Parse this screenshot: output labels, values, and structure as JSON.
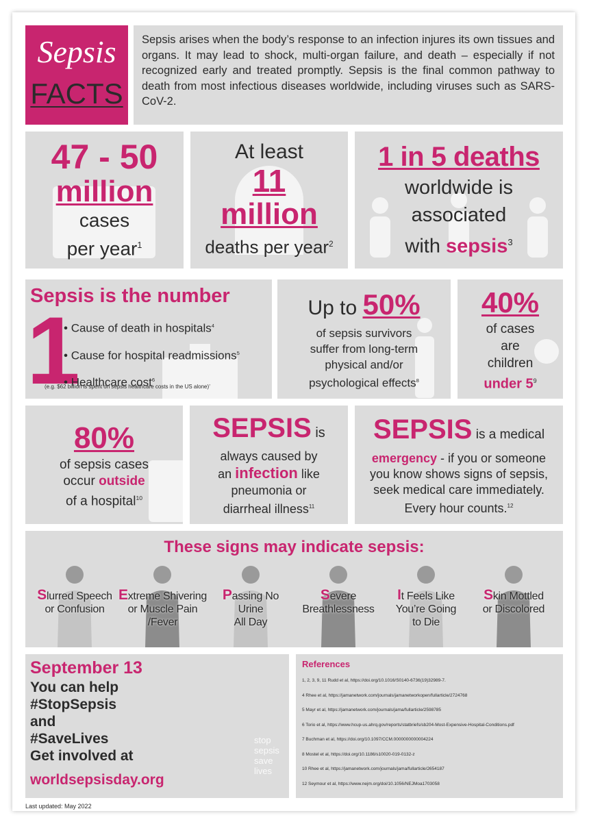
{
  "header": {
    "title": "Sepsis",
    "subtitle": "FACTS",
    "text": "Sepsis arises when the body’s response to an infection injures its own tissues and organs. It may lead to shock, multi-organ failure, and death – especially if not recognized early and treated promptly. Sepsis is the final common pathway to death from most infectious diseases worldwide, including viruses such as SARS-CoV-2."
  },
  "cases": {
    "figure": "47 - 50",
    "unit": "million",
    "line_1": "cases",
    "line_2": "per year",
    "ref": "1"
  },
  "deaths": {
    "intro": "At least",
    "figure": "11",
    "unit": "million",
    "line_1": "deaths per year",
    "ref": "2"
  },
  "share": {
    "figure": "1 in 5 deaths",
    "line_1": "worldwide is",
    "line_2": "associated",
    "line_3": "with",
    "emphasis": "sepsis",
    "ref": "3"
  },
  "number_one": {
    "title": "Sepsis is the number",
    "numeral": "1",
    "items": [
      {
        "text": "Cause of death in hospitals",
        "ref": "4"
      },
      {
        "text": "Cause for hospital readmissions",
        "ref": "5"
      },
      {
        "text": "Healthcare cost",
        "ref": "6"
      }
    ],
    "note": "(e.g. $62 billion is spent on sepsis healthcare costs in the US alone)",
    "note_ref": "7"
  },
  "survivors": {
    "intro": "Up to",
    "figure": "50%",
    "lines": [
      "of sepsis survivors",
      "suffer from long-term",
      "physical and/or",
      "psychological effects"
    ],
    "ref": "8"
  },
  "children": {
    "figure": "40%",
    "lines": [
      "of cases",
      "are",
      "children"
    ],
    "emphasis": "under 5",
    "ref": "9"
  },
  "outside": {
    "figure": "80%",
    "line_1": "of sepsis cases",
    "line_2": "occur",
    "emphasis": "outside",
    "line_3": "of a hospital",
    "ref": "10"
  },
  "infection": {
    "title": "SEPSIS",
    "after_title": "is",
    "line_1": "always caused by",
    "line_2": "an",
    "emphasis": "infection",
    "after_emphasis": "like",
    "line_3": "pneumonia or",
    "line_4": "diarrheal illness",
    "ref": "11"
  },
  "emergency": {
    "title": "SEPSIS",
    "after_title": "is a medical",
    "emphasis": "emergency",
    "after_emphasis": "- if you or someone",
    "line_1": "you know shows signs of sepsis,",
    "line_2": "seek medical care immediately.",
    "line_3": "Every hour counts.",
    "ref": "12"
  },
  "signs": {
    "title": "These signs may indicate sepsis:",
    "items": [
      {
        "initial": "S",
        "lines": [
          "lurred Speech",
          "or Confusion"
        ]
      },
      {
        "initial": "E",
        "lines": [
          "xtreme Shivering",
          "or Muscle Pain",
          "/Fever"
        ]
      },
      {
        "initial": "P",
        "lines": [
          "assing No",
          "Urine",
          "All Day"
        ]
      },
      {
        "initial": "S",
        "lines": [
          "evere",
          "Breathlessness"
        ]
      },
      {
        "initial": "I",
        "lines": [
          "t Feels Like",
          "You’re Going",
          "to Die"
        ]
      },
      {
        "initial": "S",
        "lines": [
          "kin Mottled",
          "or Discolored"
        ]
      }
    ]
  },
  "campaign": {
    "date": "September 13",
    "lines": [
      "You can help",
      "#StopSepsis",
      "and",
      "#SaveLives",
      "Get involved at"
    ],
    "link": "worldsepsisday.org",
    "logo": [
      "stop",
      "sepsis",
      "save",
      "lives"
    ]
  },
  "references": {
    "title": "References",
    "items": [
      "1, 2, 3, 9, 11 Rudd et al, https://doi.org/10.1016/S0140-6736(19)32989-7.",
      "4 Rhee et al, https://jamanetwork.com/journals/jamanetworkopen/fullarticle/2724768",
      "5 Mayr et al, https://jamanetwork.com/journals/jama/fullarticle/2598785",
      "6 Torio et al, https://www.hcup-us.ahrq.gov/reports/statbriefs/sb204-Most-Expensive-Hospital-Conditions.pdf",
      "7 Buchman et al, https://doi.org/10.1097/CCM.0000000000004224",
      "8 Mostel et al, https://doi.org/10.1186/s10020-019-0132-z",
      "10 Rhee et al, https://jamanetwork.com/journals/jama/fullarticle/2654187",
      "12 Seymour et al, https://www.nejm.org/doi/10.1056/NEJMoa1703058"
    ]
  },
  "footer": "Last updated: May 2022"
}
